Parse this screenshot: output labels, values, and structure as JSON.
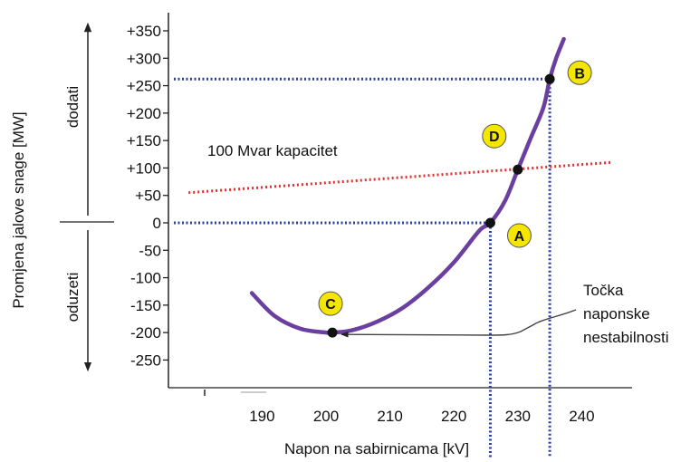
{
  "chart_data": {
    "type": "line",
    "title": "",
    "xlabel": "Napon na sabirnicama [kV]",
    "ylabel": "Promjena jalove snage [MW]",
    "xlim": [
      177,
      247
    ],
    "ylim": [
      -300,
      380
    ],
    "x_ticks": [
      190,
      200,
      210,
      220,
      230,
      240
    ],
    "x_tick_labels": [
      "190",
      "200",
      "210",
      "220",
      "230",
      "240"
    ],
    "y_ticks": [
      350,
      300,
      250,
      200,
      150,
      100,
      50,
      0,
      -50,
      -100,
      -150,
      -200,
      -250
    ],
    "y_tick_labels": [
      "+350",
      "+300",
      "+250",
      "+200",
      "+150",
      "+100",
      "+50",
      "0",
      "-50",
      "-100",
      "-150",
      "-200",
      "-250"
    ],
    "series": [
      {
        "kind": "curve",
        "color": "#6a3fa0",
        "x": [
          188.4,
          192,
          196,
          200,
          201,
          204,
          208,
          212,
          216,
          220,
          224,
          225.7,
          228,
          230,
          232,
          234,
          235,
          236,
          237.2
        ],
        "y": [
          -128,
          -170,
          -193,
          -200,
          -200,
          -196,
          -180,
          -155,
          -118,
          -72,
          -14,
          0,
          40,
          97,
          154,
          210,
          262,
          300,
          335
        ]
      },
      {
        "name": "100 Mvar kapacitet",
        "kind": "line",
        "color": "#e03030",
        "x": [
          178.5,
          244.5
        ],
        "y": [
          55,
          110
        ]
      }
    ],
    "points": [
      {
        "label": "A",
        "x": 225.7,
        "y": 0
      },
      {
        "label": "B",
        "x": 235,
        "y": 262
      },
      {
        "label": "C",
        "x": 201,
        "y": -200
      },
      {
        "label": "D",
        "x": 230,
        "y": 97
      }
    ],
    "guide_color": "#2a3f9e",
    "marker_fill": "#f5e600",
    "annotations": {
      "capacity_label": "100 Mvar kapacitet",
      "instability_label": [
        "Točka",
        "naponske",
        "nestabilnosti"
      ]
    },
    "direction_labels": {
      "up": "dodati",
      "down": "oduzeti"
    },
    "grid": false,
    "legend": "none"
  }
}
